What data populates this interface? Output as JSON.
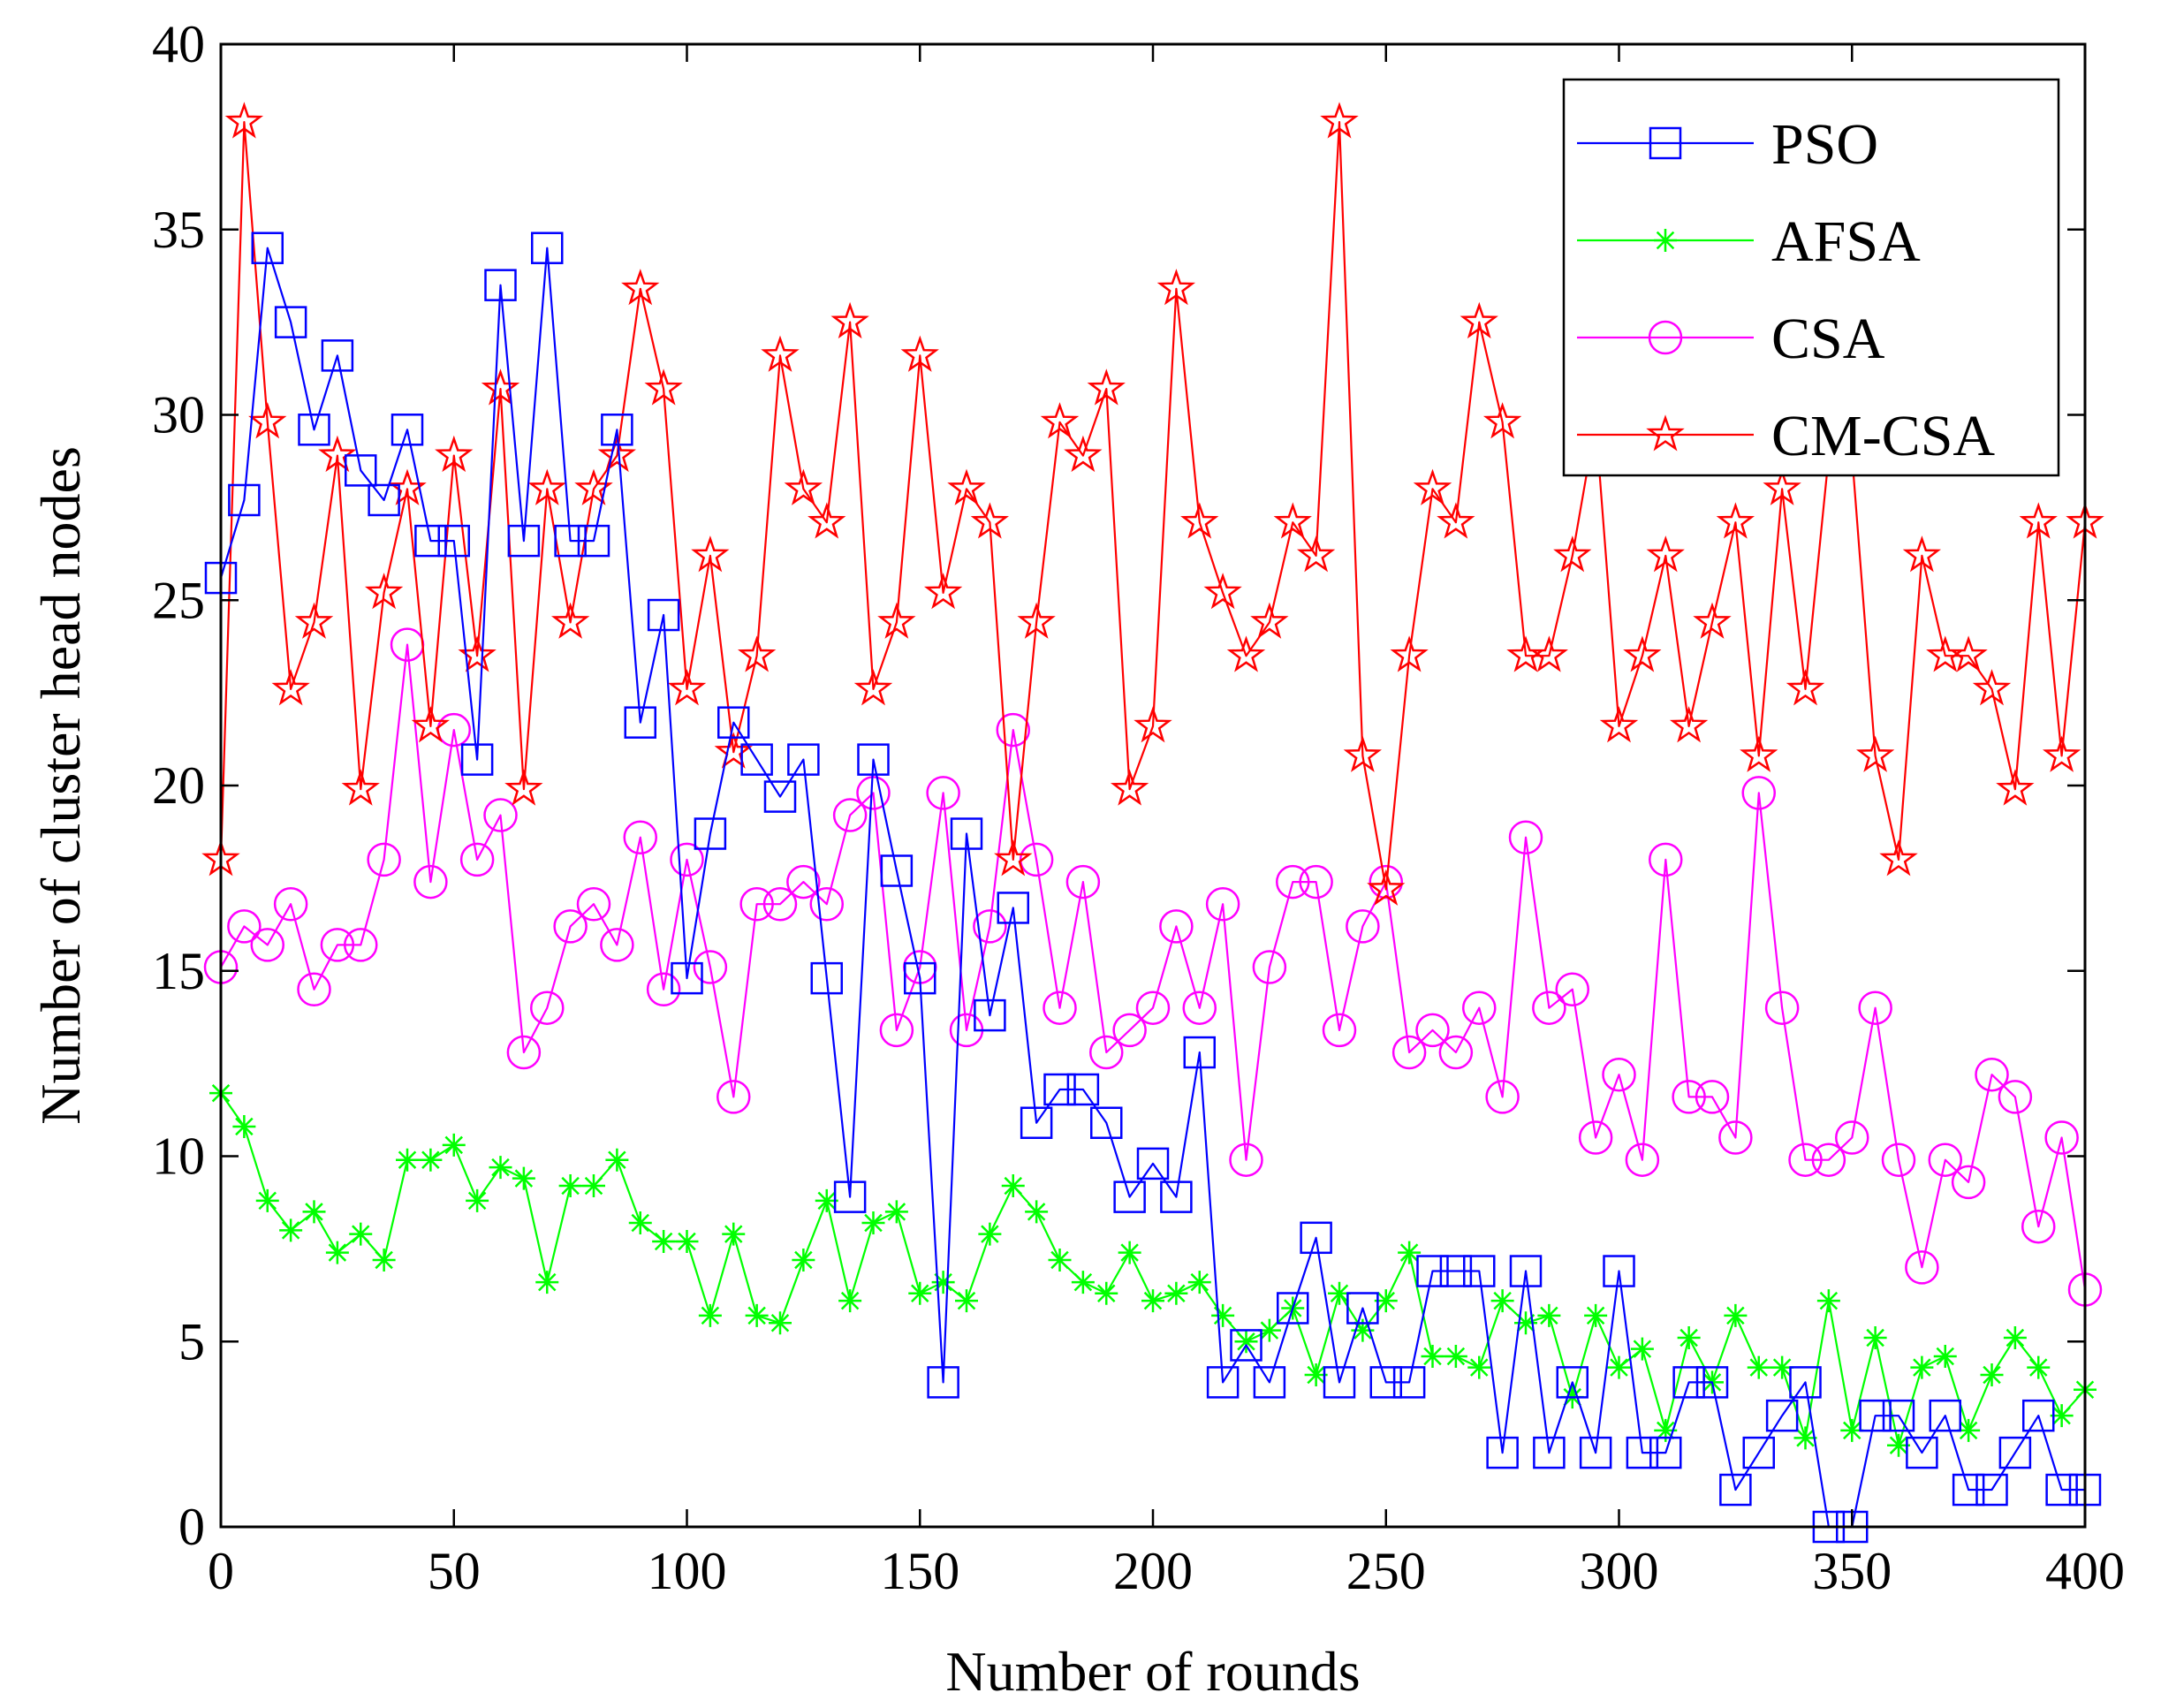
{
  "chart_data": {
    "type": "line",
    "title": "",
    "xlabel": "Number of rounds",
    "ylabel": "Number of cluster head nodes",
    "xlim": [
      0,
      400
    ],
    "ylim": [
      0,
      40
    ],
    "xticks": [
      0,
      50,
      100,
      150,
      200,
      250,
      300,
      350,
      400
    ],
    "yticks": [
      0,
      5,
      10,
      15,
      20,
      25,
      30,
      35,
      40
    ],
    "grid": false,
    "legend_position": "top-right",
    "series": [
      {
        "name": "PSO",
        "color": "#0000ff",
        "marker": "square",
        "x": [
          0,
          5,
          10,
          15,
          20,
          25,
          30,
          35,
          40,
          45,
          50,
          55,
          60,
          65,
          70,
          75,
          80,
          85,
          90,
          95,
          100,
          105,
          110,
          115,
          120,
          125,
          130,
          135,
          140,
          145,
          150,
          155,
          160,
          165,
          170,
          175,
          180,
          185,
          190,
          195,
          200,
          205,
          210,
          215,
          220,
          225,
          230,
          235,
          240,
          245,
          250,
          255,
          260,
          265,
          270,
          275,
          280,
          285,
          290,
          295,
          300,
          305,
          310,
          315,
          320,
          325,
          330,
          335,
          340,
          345,
          350,
          355,
          360,
          365,
          370,
          375,
          380,
          385,
          390,
          395,
          400
        ],
        "values": [
          25.6,
          27.7,
          34.5,
          32.5,
          29.6,
          31.6,
          28.5,
          27.7,
          29.6,
          26.6,
          26.6,
          20.7,
          33.5,
          26.6,
          34.5,
          26.6,
          26.6,
          29.6,
          21.7,
          24.6,
          14.8,
          18.7,
          21.7,
          20.7,
          19.7,
          20.7,
          14.8,
          8.9,
          20.7,
          17.7,
          14.8,
          3.9,
          18.7,
          13.8,
          16.7,
          10.9,
          11.8,
          11.8,
          10.9,
          8.9,
          9.8,
          8.9,
          12.8,
          3.9,
          4.9,
          3.9,
          5.9,
          7.8,
          3.9,
          5.9,
          3.9,
          3.9,
          6.9,
          6.9,
          6.9,
          2.0,
          6.9,
          2.0,
          3.9,
          2.0,
          6.9,
          2.0,
          2.0,
          3.9,
          3.9,
          1.0,
          2.0,
          3.0,
          3.9,
          0,
          0,
          3.0,
          3.0,
          2.0,
          3.0,
          1.0,
          1.0,
          2.0,
          3.0,
          1.0,
          1.0
        ]
      },
      {
        "name": "AFSA",
        "color": "#00ff00",
        "marker": "asterisk",
        "x": [
          0,
          5,
          10,
          15,
          20,
          25,
          30,
          35,
          40,
          45,
          50,
          55,
          60,
          65,
          70,
          75,
          80,
          85,
          90,
          95,
          100,
          105,
          110,
          115,
          120,
          125,
          130,
          135,
          140,
          145,
          150,
          155,
          160,
          165,
          170,
          175,
          180,
          185,
          190,
          195,
          200,
          205,
          210,
          215,
          220,
          225,
          230,
          235,
          240,
          245,
          250,
          255,
          260,
          265,
          270,
          275,
          280,
          285,
          290,
          295,
          300,
          305,
          310,
          315,
          320,
          325,
          330,
          335,
          340,
          345,
          350,
          355,
          360,
          365,
          370,
          375,
          380,
          385,
          390,
          395,
          400
        ],
        "values": [
          11.7,
          10.8,
          8.8,
          8.0,
          8.5,
          7.4,
          7.9,
          7.2,
          9.9,
          9.9,
          10.3,
          8.8,
          9.7,
          9.4,
          6.6,
          9.2,
          9.2,
          9.9,
          8.2,
          7.7,
          7.7,
          5.7,
          7.9,
          5.7,
          5.5,
          7.2,
          8.8,
          6.1,
          8.2,
          8.5,
          6.3,
          6.6,
          6.1,
          7.9,
          9.2,
          8.5,
          7.2,
          6.6,
          6.3,
          7.4,
          6.1,
          6.3,
          6.6,
          5.7,
          5.0,
          5.3,
          5.9,
          4.1,
          6.3,
          5.3,
          6.1,
          7.4,
          4.6,
          4.6,
          4.3,
          6.1,
          5.5,
          5.7,
          3.5,
          5.7,
          4.3,
          4.8,
          2.6,
          5.1,
          3.9,
          5.7,
          4.3,
          4.3,
          2.4,
          6.1,
          2.6,
          5.1,
          2.2,
          4.3,
          4.6,
          2.6,
          4.1,
          5.1,
          4.3,
          3.0,
          3.7
        ]
      },
      {
        "name": "CSA",
        "color": "#ff00ff",
        "marker": "circle",
        "x": [
          0,
          5,
          10,
          15,
          20,
          25,
          30,
          35,
          40,
          45,
          50,
          55,
          60,
          65,
          70,
          75,
          80,
          85,
          90,
          95,
          100,
          105,
          110,
          115,
          120,
          125,
          130,
          135,
          140,
          145,
          150,
          155,
          160,
          165,
          170,
          175,
          180,
          185,
          190,
          195,
          200,
          205,
          210,
          215,
          220,
          225,
          230,
          235,
          240,
          245,
          250,
          255,
          260,
          265,
          270,
          275,
          280,
          285,
          290,
          295,
          300,
          305,
          310,
          315,
          320,
          325,
          330,
          335,
          340,
          345,
          350,
          355,
          360,
          365,
          370,
          375,
          380,
          385,
          390,
          395,
          400
        ],
        "values": [
          15.1,
          16.2,
          15.7,
          16.8,
          14.5,
          15.7,
          15.7,
          18.0,
          23.8,
          17.4,
          21.5,
          18.0,
          19.2,
          12.8,
          14.0,
          16.2,
          16.8,
          15.7,
          18.6,
          14.5,
          18.0,
          15.1,
          11.6,
          16.8,
          16.8,
          17.4,
          16.8,
          19.2,
          19.8,
          13.4,
          15.1,
          19.8,
          13.4,
          16.2,
          21.5,
          18.0,
          14.0,
          17.4,
          12.8,
          13.4,
          14.0,
          16.2,
          14.0,
          16.8,
          9.9,
          15.1,
          17.4,
          17.4,
          13.4,
          16.2,
          17.4,
          12.8,
          13.4,
          12.8,
          14.0,
          11.6,
          18.6,
          14.0,
          14.5,
          10.5,
          12.2,
          9.9,
          18.0,
          11.6,
          11.6,
          10.5,
          19.8,
          14.0,
          9.9,
          9.9,
          10.5,
          14.0,
          9.9,
          7.0,
          9.9,
          9.3,
          12.2,
          11.6,
          8.1,
          10.5,
          6.4
        ]
      },
      {
        "name": "CM-CSA",
        "color": "#ff0000",
        "marker": "pentagram",
        "x": [
          0,
          5,
          10,
          15,
          20,
          25,
          30,
          35,
          40,
          45,
          50,
          55,
          60,
          65,
          70,
          75,
          80,
          85,
          90,
          95,
          100,
          105,
          110,
          115,
          120,
          125,
          130,
          135,
          140,
          145,
          150,
          155,
          160,
          165,
          170,
          175,
          180,
          185,
          190,
          195,
          200,
          205,
          210,
          215,
          220,
          225,
          230,
          235,
          240,
          245,
          250,
          255,
          260,
          265,
          270,
          275,
          280,
          285,
          290,
          295,
          300,
          305,
          310,
          315,
          320,
          325,
          330,
          335,
          340,
          345,
          350,
          355,
          360,
          365,
          370,
          375,
          380,
          385,
          390,
          395,
          400
        ],
        "values": [
          18.0,
          37.9,
          29.8,
          22.6,
          24.4,
          28.9,
          19.9,
          25.2,
          28.0,
          21.6,
          28.9,
          23.5,
          30.7,
          19.9,
          28.0,
          24.4,
          28.0,
          28.9,
          33.4,
          30.7,
          22.6,
          26.2,
          20.9,
          23.5,
          31.6,
          28.0,
          27.1,
          32.5,
          22.6,
          24.4,
          31.6,
          25.2,
          28.0,
          27.1,
          18.0,
          24.4,
          29.8,
          28.9,
          30.7,
          19.9,
          21.6,
          33.4,
          27.1,
          25.2,
          23.5,
          24.4,
          27.1,
          26.2,
          37.9,
          20.8,
          17.2,
          23.5,
          28.0,
          27.1,
          32.5,
          29.8,
          23.5,
          23.5,
          26.2,
          29.8,
          21.6,
          23.5,
          26.2,
          21.6,
          24.4,
          27.1,
          20.8,
          28.0,
          22.6,
          28.9,
          28.9,
          20.8,
          18.0,
          26.2,
          23.5,
          23.5,
          22.6,
          19.9,
          27.1,
          20.8,
          27.1
        ]
      }
    ]
  }
}
